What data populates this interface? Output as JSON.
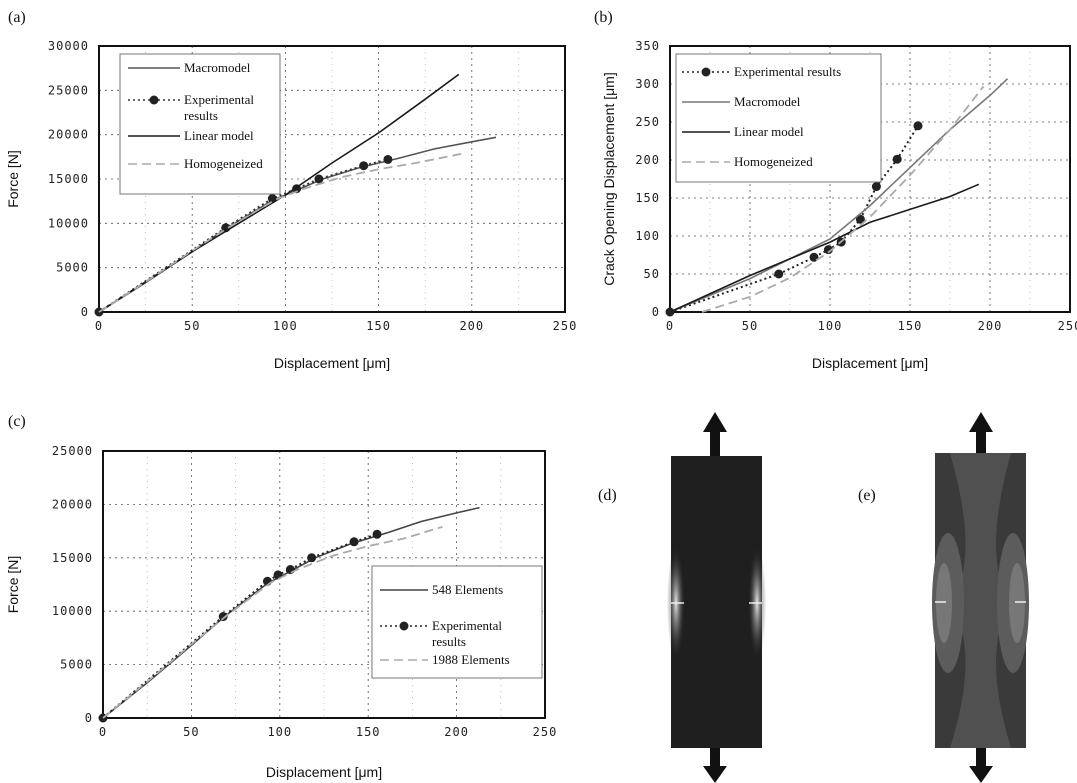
{
  "chart_data": [
    {
      "panel": "(a)",
      "type": "line",
      "xlabel": "Displacement [μm]",
      "ylabel": "Force [N]",
      "xlim": [
        0,
        250
      ],
      "ylim": [
        0,
        30000
      ],
      "x_ticks": [
        0,
        50,
        100,
        150,
        200,
        250
      ],
      "y_ticks": [
        0,
        5000,
        10000,
        15000,
        20000,
        25000,
        30000
      ],
      "grid": true,
      "legend_position": "top-left",
      "series": [
        {
          "name": "Macromodel",
          "style": "solid",
          "color": "#555555",
          "points": [
            [
              0,
              0
            ],
            [
              25,
              3300
            ],
            [
              50,
              6800
            ],
            [
              68,
              9400
            ],
            [
              93,
              12600
            ],
            [
              100,
              13200
            ],
            [
              120,
              15000
            ],
            [
              140,
              16300
            ],
            [
              160,
              17300
            ],
            [
              180,
              18400
            ],
            [
              200,
              19200
            ],
            [
              213,
              19700
            ]
          ]
        },
        {
          "name": "Experimental results",
          "style": "dotted-markers",
          "color": "#333333",
          "points": [
            [
              0,
              0
            ],
            [
              68,
              9500
            ],
            [
              93,
              12800
            ],
            [
              106,
              13900
            ],
            [
              118,
              15000
            ],
            [
              142,
              16500
            ],
            [
              155,
              17200
            ]
          ]
        },
        {
          "name": "Linear model",
          "style": "solid",
          "color": "#1a1a1a",
          "points": [
            [
              0,
              0
            ],
            [
              50,
              6800
            ],
            [
              100,
              13200
            ],
            [
              125,
              16800
            ],
            [
              150,
              20200
            ],
            [
              175,
              24000
            ],
            [
              193,
              26800
            ]
          ]
        },
        {
          "name": "Homogeneized",
          "style": "dashed",
          "color": "#aaaaaa",
          "points": [
            [
              0,
              0
            ],
            [
              25,
              3400
            ],
            [
              50,
              6900
            ],
            [
              70,
              9600
            ],
            [
              95,
              12700
            ],
            [
              110,
              13900
            ],
            [
              130,
              15200
            ],
            [
              150,
              16100
            ],
            [
              170,
              16800
            ],
            [
              196,
              17900
            ]
          ]
        }
      ]
    },
    {
      "panel": "(b)",
      "type": "line",
      "xlabel": "Displacement [μm]",
      "ylabel": "Crack Opening Displacement [μm]",
      "xlim": [
        0,
        250
      ],
      "ylim": [
        0,
        350
      ],
      "x_ticks": [
        0,
        50,
        100,
        150,
        200,
        250
      ],
      "y_ticks": [
        0,
        50,
        100,
        150,
        200,
        250,
        300,
        350
      ],
      "grid": true,
      "legend_position": "top-left",
      "series": [
        {
          "name": "Experimental results",
          "style": "dotted-markers",
          "color": "#222222",
          "points": [
            [
              0,
              0
            ],
            [
              68,
              50
            ],
            [
              90,
              72
            ],
            [
              99,
              82
            ],
            [
              107,
              92
            ],
            [
              119,
              122
            ],
            [
              129,
              165
            ],
            [
              142,
              201
            ],
            [
              155,
              245
            ]
          ]
        },
        {
          "name": "Macromodel",
          "style": "solid",
          "color": "#777777",
          "points": [
            [
              0,
              0
            ],
            [
              50,
              44
            ],
            [
              100,
              96
            ],
            [
              125,
              140
            ],
            [
              150,
              190
            ],
            [
              175,
              240
            ],
            [
              200,
              285
            ],
            [
              211,
              307
            ]
          ]
        },
        {
          "name": "Linear model",
          "style": "solid",
          "color": "#1a1a1a",
          "points": [
            [
              0,
              0
            ],
            [
              50,
              48
            ],
            [
              100,
              92
            ],
            [
              125,
              118
            ],
            [
              150,
              135
            ],
            [
              175,
              152
            ],
            [
              193,
              168
            ]
          ]
        },
        {
          "name": "Homogeneized",
          "style": "dashed",
          "color": "#aaaaaa",
          "points": [
            [
              20,
              0
            ],
            [
              50,
              20
            ],
            [
              75,
              45
            ],
            [
              100,
              80
            ],
            [
              125,
              125
            ],
            [
              150,
              180
            ],
            [
              175,
              240
            ],
            [
              196,
              297
            ]
          ]
        }
      ]
    },
    {
      "panel": "(c)",
      "type": "line",
      "xlabel": "Displacement [μm]",
      "ylabel": "Force [N]",
      "xlim": [
        0,
        250
      ],
      "ylim": [
        0,
        25000
      ],
      "x_ticks": [
        0,
        50,
        100,
        150,
        200,
        250
      ],
      "y_ticks": [
        0,
        5000,
        10000,
        15000,
        20000,
        25000
      ],
      "grid": true,
      "legend_position": "right",
      "series": [
        {
          "name": "548 Elements",
          "style": "solid",
          "color": "#444444",
          "points": [
            [
              0,
              0
            ],
            [
              25,
              3300
            ],
            [
              50,
              6800
            ],
            [
              68,
              9400
            ],
            [
              93,
              12600
            ],
            [
              100,
              13200
            ],
            [
              120,
              15000
            ],
            [
              140,
              16300
            ],
            [
              160,
              17300
            ],
            [
              180,
              18400
            ],
            [
              200,
              19200
            ],
            [
              213,
              19700
            ]
          ]
        },
        {
          "name": "Experimental results",
          "style": "dotted-markers",
          "color": "#222222",
          "points": [
            [
              0,
              0
            ],
            [
              68,
              9500
            ],
            [
              93,
              12800
            ],
            [
              99,
              13400
            ],
            [
              106,
              13900
            ],
            [
              118,
              15000
            ],
            [
              142,
              16500
            ],
            [
              155,
              17200
            ]
          ]
        },
        {
          "name": "1988 Elements",
          "style": "dashed",
          "color": "#aaaaaa",
          "points": [
            [
              0,
              0
            ],
            [
              25,
              3400
            ],
            [
              50,
              6900
            ],
            [
              70,
              9600
            ],
            [
              95,
              12700
            ],
            [
              110,
              13900
            ],
            [
              130,
              15200
            ],
            [
              150,
              16100
            ],
            [
              170,
              16800
            ],
            [
              192,
              17900
            ]
          ]
        }
      ]
    }
  ],
  "figure_labels": {
    "d": "(d)",
    "e": "(e)"
  }
}
